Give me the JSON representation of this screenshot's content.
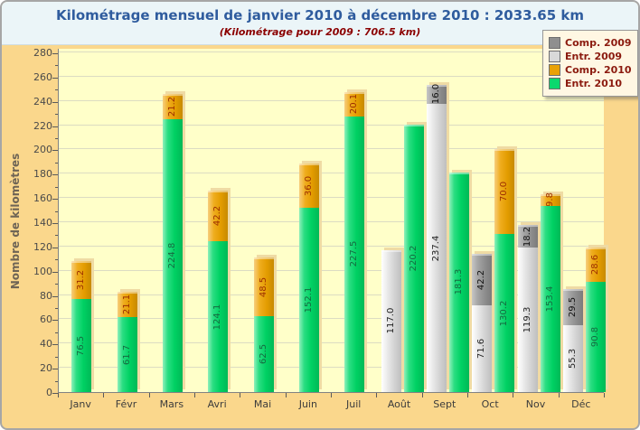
{
  "header": {
    "title": "Kilométrage mensuel de janvier 2010 à décembre 2010 : 2033.65 km",
    "subtitle": "(Kilométrage pour 2009 : 706.5 km)"
  },
  "axes": {
    "y_title": "Nombre de kilomètres",
    "y_min": 0,
    "y_max": 280,
    "y_major_step": 20,
    "y_minor_step": 10
  },
  "legend": {
    "items": [
      {
        "label": "Comp. 2009",
        "color": "#8F8F8F",
        "key": "comp-2009"
      },
      {
        "label": "Entr. 2009",
        "color": "#D9D9D9",
        "key": "entr-2009"
      },
      {
        "label": "Comp. 2010",
        "color": "#E9A207",
        "key": "comp-2010"
      },
      {
        "label": "Entr. 2010",
        "color": "#0BD96E",
        "key": "entr-2010"
      }
    ]
  },
  "chart_data": {
    "type": "bar",
    "stacked": true,
    "title": "Kilométrage mensuel de janvier 2010 à décembre 2010 : 2033.65 km",
    "subtitle": "(Kilométrage pour 2009 : 706.5 km)",
    "ylabel": "Nombre de kilomètres",
    "ylim": [
      0,
      280
    ],
    "grid": "horizontal",
    "legend_position": "top-right",
    "categories": [
      "Janv",
      "Févr",
      "Mars",
      "Avri",
      "Mai",
      "Juin",
      "Juil",
      "Août",
      "Sept",
      "Oct",
      "Nov",
      "Déc"
    ],
    "series": [
      {
        "name": "Comp. 2009",
        "key": "comp-2009",
        "color": "#8F8F8F",
        "label_color": "#111111",
        "values": [
          0,
          0,
          0,
          0,
          0,
          0,
          0,
          0,
          16.0,
          42.2,
          18.2,
          29.5
        ]
      },
      {
        "name": "Entr. 2009",
        "key": "entr-2009",
        "color": "#D9D9D9",
        "label_color": "#222222",
        "values": [
          0,
          0,
          0,
          0,
          0,
          0,
          0,
          117.0,
          237.4,
          71.6,
          119.3,
          55.3
        ]
      },
      {
        "name": "Comp. 2010",
        "key": "comp-2010",
        "color": "#E9A207",
        "label_color": "#9C2D00",
        "values": [
          31.2,
          21.1,
          21.2,
          42.2,
          48.5,
          36.0,
          20.1,
          0,
          0,
          70.0,
          9.8,
          28.6
        ]
      },
      {
        "name": "Entr. 2010",
        "key": "entr-2010",
        "color": "#0BD96E",
        "label_color": "#156A40",
        "values": [
          76.5,
          61.7,
          224.8,
          124.1,
          62.5,
          152.1,
          227.5,
          220.2,
          181.3,
          130.2,
          153.4,
          90.8
        ]
      }
    ],
    "totals": {
      "year_2010_km": "2033.65",
      "year_2009_km": "706.5"
    }
  }
}
